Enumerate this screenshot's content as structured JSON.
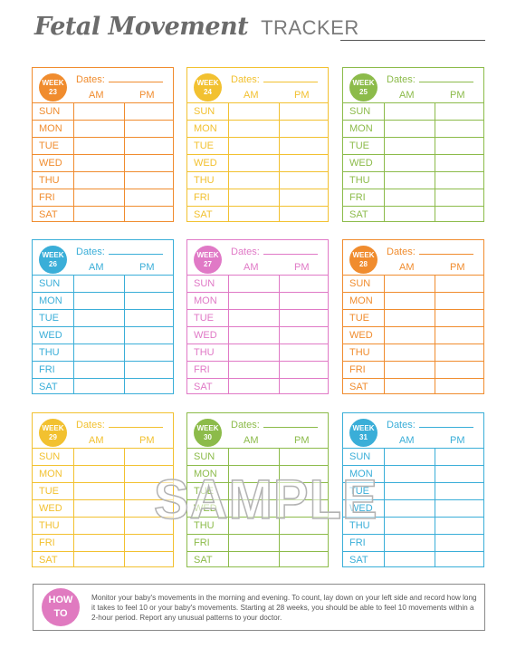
{
  "header": {
    "title_script": "Fetal Movement",
    "title_plain": "TRACKER"
  },
  "labels": {
    "week": "WEEK",
    "dates": "Dates:",
    "am": "AM",
    "pm": "PM",
    "days": [
      "SUN",
      "MON",
      "TUE",
      "WED",
      "THU",
      "FRI",
      "SAT"
    ]
  },
  "weeks": [
    {
      "number": "23",
      "color": "#f08c2e"
    },
    {
      "number": "24",
      "color": "#f2c130"
    },
    {
      "number": "25",
      "color": "#8cbb4a"
    },
    {
      "number": "26",
      "color": "#3aaed8"
    },
    {
      "number": "27",
      "color": "#e079c6"
    },
    {
      "number": "28",
      "color": "#f08c2e"
    },
    {
      "number": "29",
      "color": "#f2c130"
    },
    {
      "number": "30",
      "color": "#8cbb4a"
    },
    {
      "number": "31",
      "color": "#3aaed8"
    }
  ],
  "watermark": "SAMPLE",
  "howto": {
    "badge_top": "HOW",
    "badge_bottom": "TO",
    "text": "Monitor your baby's movements in the morning and evening. To count, lay down on your left side and record how long it takes to feel 10 or your baby's movements. Starting at 28 weeks, you should be able to feel 10 movements within a 2-hour period. Report any unusual patterns to your doctor.",
    "color": "#e07ac0"
  }
}
